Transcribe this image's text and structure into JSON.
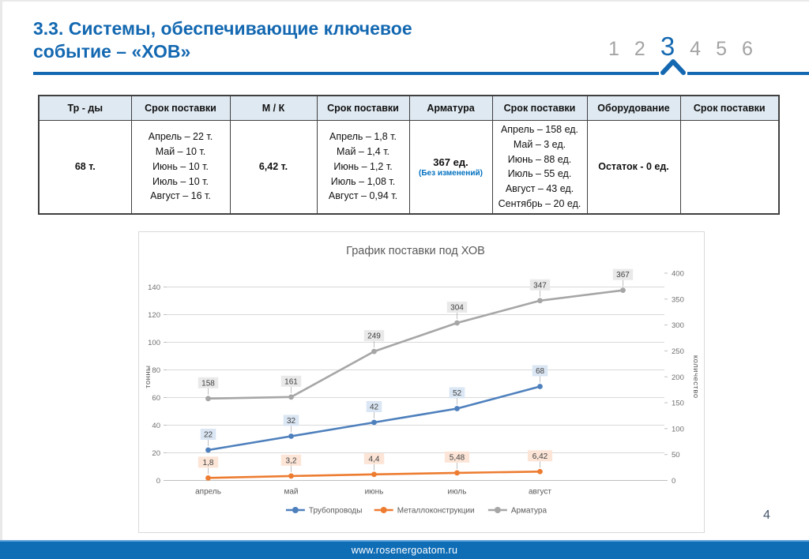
{
  "slide": {
    "title": "3.3. Системы, обеспечивающие ключевое событие – «ХОВ»",
    "page_number": "4",
    "footer_url": "www.rosenergoatom.ru",
    "accent_color": "#1368b1",
    "pagination": {
      "pages": [
        "1",
        "2",
        "3",
        "4",
        "5",
        "6"
      ],
      "active": "3"
    }
  },
  "table": {
    "headers": [
      "Тр - ды",
      "Срок поставки",
      "М / К",
      "Срок поставки",
      "Арматура",
      "Срок поставки",
      "Оборудование",
      "Срок поставки"
    ],
    "row": {
      "tr_total": "68 т.",
      "tr_schedule": [
        "Апрель – 22 т.",
        "Май – 10 т.",
        "Июнь – 10 т.",
        "Июль – 10 т.",
        "Август – 16 т."
      ],
      "mk_total": "6,42 т.",
      "mk_schedule": [
        "Апрель – 1,8 т.",
        "Май – 1,4 т.",
        "Июнь – 1,2 т.",
        "Июль – 1,08 т.",
        "Август – 0,94 т."
      ],
      "arm_total": "367 ед.",
      "arm_note": "(Без изменений)",
      "arm_schedule": [
        "Апрель – 158 ед.",
        "Май – 3 ед.",
        "Июнь – 88 ед.",
        "Июль – 55 ед.",
        "Август – 43 ед.",
        "Сентябрь – 20 ед."
      ],
      "equip_total": "Остаток - 0 ед.",
      "equip_schedule": ""
    }
  },
  "chart_data": {
    "type": "line",
    "title": "График поставки под ХОВ",
    "categories": [
      "апрель",
      "май",
      "июнь",
      "июль",
      "август",
      ""
    ],
    "series": [
      {
        "name": "Трубопроводы",
        "axis": "left",
        "color": "#4e80bd",
        "label_bg": "#dae6f3",
        "values": [
          22,
          32,
          42,
          52,
          68
        ],
        "labels": [
          "22",
          "32",
          "42",
          "52",
          "68"
        ]
      },
      {
        "name": "Металлоконструкции",
        "axis": "left",
        "color": "#ed7c31",
        "label_bg": "#fce5d7",
        "values": [
          1.8,
          3.2,
          4.4,
          5.48,
          6.42
        ],
        "labels": [
          "1,8",
          "3,2",
          "4,4",
          "5,48",
          "6,42"
        ]
      },
      {
        "name": "Арматура",
        "axis": "right",
        "color": "#a6a6a6",
        "label_bg": "#e9e9e9",
        "values": [
          158,
          161,
          249,
          304,
          347,
          367
        ],
        "labels": [
          "158",
          "161",
          "249",
          "304",
          "347",
          "367"
        ]
      }
    ],
    "left_axis": {
      "label": "тонны",
      "ticks": [
        0,
        20,
        40,
        60,
        80,
        100,
        120,
        140
      ],
      "max": 150
    },
    "right_axis": {
      "label": "количество",
      "ticks": [
        0,
        50,
        100,
        150,
        200,
        250,
        300,
        350,
        400
      ],
      "max": 400
    },
    "legend_position": "bottom",
    "grid": true
  }
}
